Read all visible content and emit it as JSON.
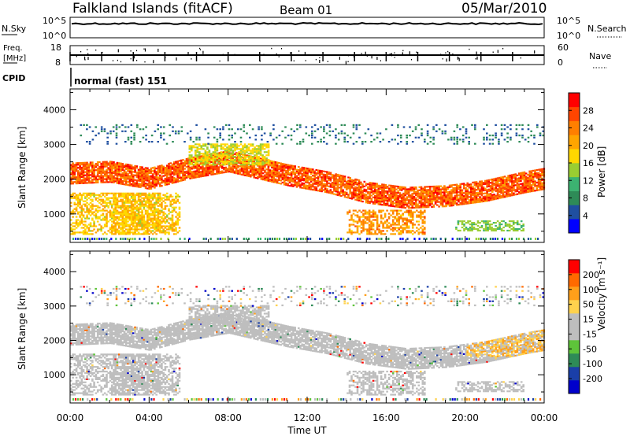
{
  "header": {
    "title": "Falkland Islands (fitACF)",
    "beam": "Beam 01",
    "date": "05/Mar/2010"
  },
  "status_panels": {
    "nsky_label": "N.Sky",
    "nsky_ticks": [
      "10^5",
      "10^0"
    ],
    "nsearch_label": "N.Search",
    "nsearch_ticks": [
      "10^5",
      "10^0"
    ],
    "freq_label_1": "Freq.",
    "freq_label_2": "[MHz]",
    "freq_ticks": [
      "18",
      "8"
    ],
    "nave_label": "Nave",
    "nave_ticks": [
      "60",
      "0"
    ],
    "cpid_label": "CPID",
    "cpid_value": "normal (fast) 151"
  },
  "chart_data": [
    {
      "type": "heatmap",
      "name": "power-panel",
      "xlabel": "",
      "ylabel": "Slant Range [km]",
      "xlim": [
        0,
        24
      ],
      "ylim": [
        180,
        4600
      ],
      "y_ticks": [
        "4000",
        "3000",
        "2000",
        "1000"
      ],
      "y_tick_values": [
        4000,
        3000,
        2000,
        1000
      ],
      "colorbar": {
        "label": "Power [dB]",
        "ticks": [
          "28",
          "24",
          "20",
          "16",
          "12",
          "8",
          "4"
        ],
        "colors": [
          "#0000ff",
          "#1f4fa0",
          "#2e8b57",
          "#3cb371",
          "#9acd32",
          "#ffd700",
          "#ffa500",
          "#ff7f00",
          "#ff4500",
          "#ff0000"
        ]
      }
    },
    {
      "type": "heatmap",
      "name": "velocity-panel",
      "xlabel": "Time UT",
      "ylabel": "Slant Range [km]",
      "xlim": [
        0,
        24
      ],
      "ylim": [
        180,
        4600
      ],
      "x_ticks": [
        "00:00",
        "04:00",
        "08:00",
        "12:00",
        "16:00",
        "20:00",
        "00:00"
      ],
      "x_tick_values": [
        0,
        4,
        8,
        12,
        16,
        20,
        24
      ],
      "y_ticks": [
        "4000",
        "3000",
        "2000",
        "1000"
      ],
      "y_tick_values": [
        4000,
        3000,
        2000,
        1000
      ],
      "colorbar": {
        "label": "Velocity [m s⁻¹]",
        "ticks": [
          "200",
          "100",
          "50",
          "15",
          "-15",
          "-50",
          "-100",
          "-200"
        ],
        "colors": [
          "#0000cc",
          "#1a3fa8",
          "#2e8b57",
          "#5ec43a",
          "#bebebe",
          "#bebebe",
          "#ffd24d",
          "#ff9f1a",
          "#ff6a00",
          "#ff0000"
        ]
      }
    }
  ]
}
